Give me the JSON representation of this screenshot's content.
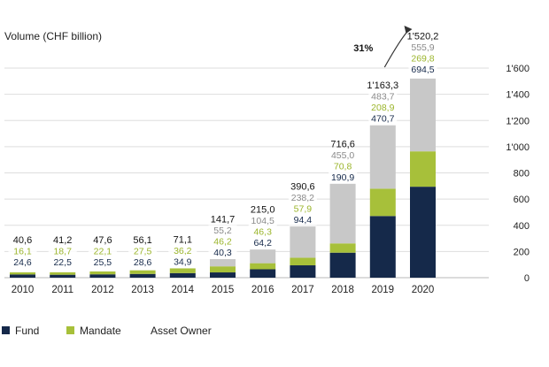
{
  "chart_data": {
    "type": "bar",
    "stacked": true,
    "ylabel": "Volume (CHF billion)",
    "ylim": [
      0,
      1600
    ],
    "yticks": [
      "0",
      "200",
      "400",
      "600",
      "800",
      "1'000",
      "1'200",
      "1'400",
      "1'600"
    ],
    "ytick_values": [
      0,
      200,
      400,
      600,
      800,
      1000,
      1200,
      1400,
      1600
    ],
    "categories": [
      "2010",
      "2011",
      "2012",
      "2013",
      "2014",
      "2015",
      "2016",
      "2017",
      "2018",
      "2019",
      "2020"
    ],
    "series": [
      {
        "name": "Fund",
        "color": "#15294a",
        "values": [
          24.6,
          22.5,
          25.5,
          28.6,
          34.9,
          40.3,
          64.2,
          94.4,
          190.9,
          470.7,
          694.5
        ],
        "labels": [
          "24,6",
          "22,5",
          "25,5",
          "28,6",
          "34,9",
          "40,3",
          "64,2",
          "94,4",
          "190,9",
          "470,7",
          "694,5"
        ]
      },
      {
        "name": "Mandate",
        "color": "#a7c03a",
        "values": [
          16.1,
          18.7,
          22.1,
          27.5,
          36.2,
          46.2,
          46.3,
          57.9,
          70.8,
          208.9,
          269.8
        ],
        "labels": [
          "16,1",
          "18,7",
          "22,1",
          "27,5",
          "36,2",
          "46,2",
          "46,3",
          "57,9",
          "70,8",
          "208,9",
          "269,8"
        ]
      },
      {
        "name": "Asset Owner",
        "color": "#c8c8c8",
        "values": [
          0,
          0,
          0,
          0,
          0,
          55.2,
          104.5,
          238.2,
          455.0,
          483.7,
          555.9
        ],
        "labels": [
          "",
          "",
          "",
          "",
          "",
          "55,2",
          "104,5",
          "238,2",
          "455,0",
          "483,7",
          "555,9"
        ]
      }
    ],
    "totals": [
      40.6,
      41.2,
      47.6,
      56.1,
      71.1,
      141.7,
      215.0,
      390.6,
      716.6,
      1163.3,
      1520.2
    ],
    "total_labels": [
      "40,6",
      "41,2",
      "47,6",
      "56,1",
      "71,1",
      "141,7",
      "215,0",
      "390,6",
      "716,6",
      "1'163,3",
      "1'520,2"
    ],
    "annotation": {
      "text": "31%",
      "from": "2019",
      "to": "2020"
    },
    "legend": [
      "Fund",
      "Mandate",
      "Asset Owner"
    ],
    "legend_placement": "bottom-left",
    "grid": true
  }
}
